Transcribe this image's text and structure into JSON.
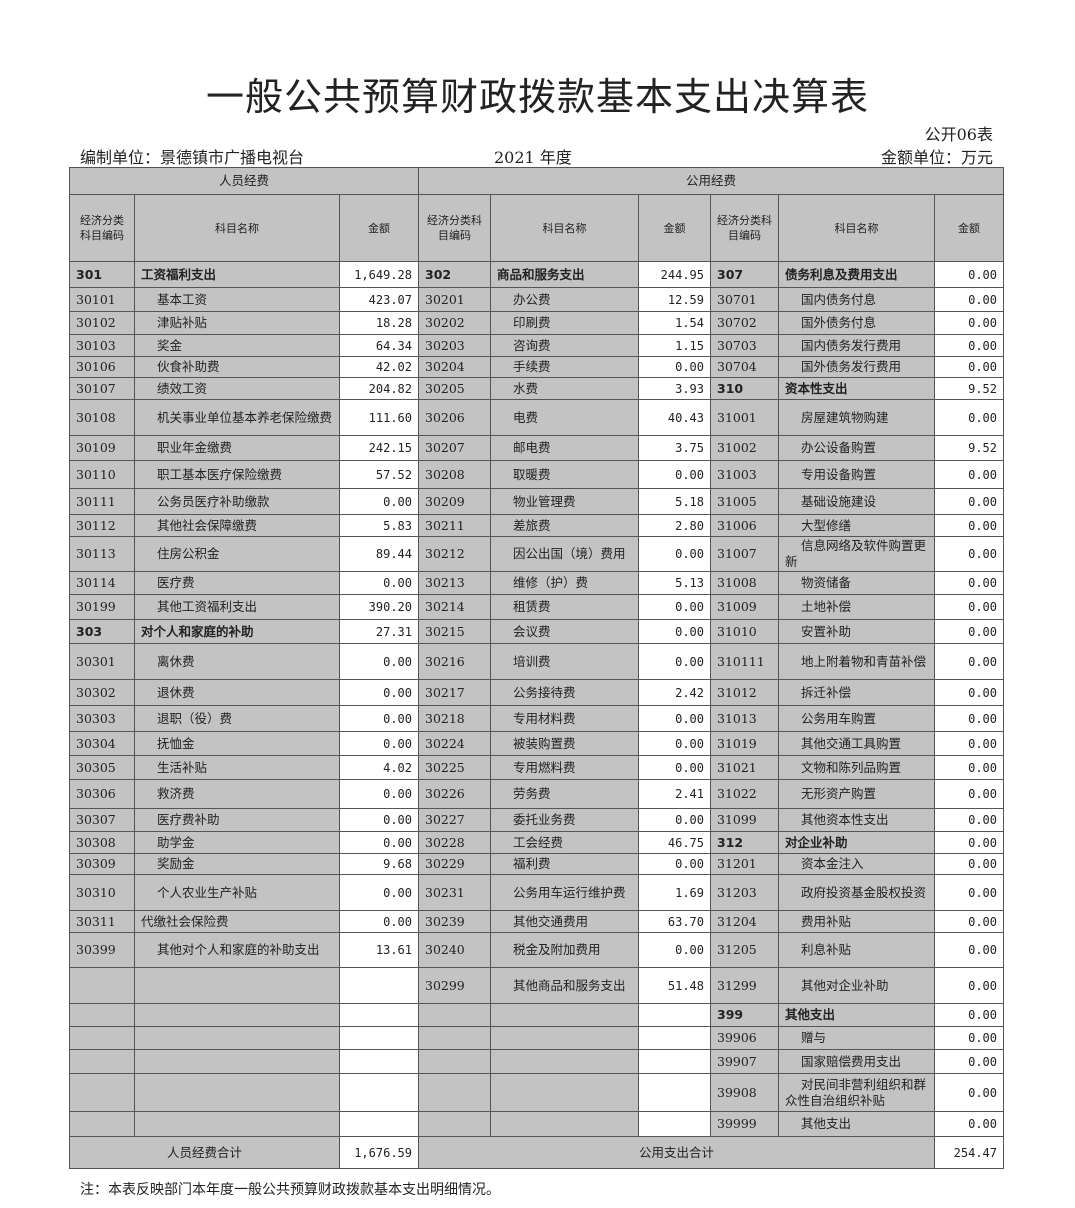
{
  "title": "一般公共预算财政拨款基本支出决算表",
  "table_no": "公开06表",
  "org": "编制单位：景德镇市广播电视台",
  "year": "2021 年度",
  "unit": "金额单位：万元",
  "headers": {
    "personnel": "人员经费",
    "public": "公用经费",
    "code1": "经济分类科目编码",
    "code2": "经济分类科目编码",
    "name": "科目名称",
    "amount": "金额"
  },
  "rows": [
    [
      [
        "301",
        "工资福利支出",
        "1,649.28",
        1
      ],
      [
        "302",
        "商品和服务支出",
        "244.95",
        1
      ],
      [
        "307",
        "债务利息及费用支出",
        "0.00",
        1
      ]
    ],
    [
      [
        "30101",
        "基本工资",
        "423.07"
      ],
      [
        "30201",
        "办公费",
        "12.59"
      ],
      [
        "30701",
        "国内债务付息",
        "0.00"
      ]
    ],
    [
      [
        "30102",
        "津贴补贴",
        "18.28"
      ],
      [
        "30202",
        "印刷费",
        "1.54"
      ],
      [
        "30702",
        "国外债务付息",
        "0.00"
      ]
    ],
    [
      [
        "30103",
        "奖金",
        "64.34"
      ],
      [
        "30203",
        "咨询费",
        "1.15"
      ],
      [
        "30703",
        "国内债务发行费用",
        "0.00"
      ]
    ],
    [
      [
        "30106",
        "伙食补助费",
        "42.02"
      ],
      [
        "30204",
        "手续费",
        "0.00"
      ],
      [
        "30704",
        "国外债务发行费用",
        "0.00"
      ]
    ],
    [
      [
        "30107",
        "绩效工资",
        "204.82"
      ],
      [
        "30205",
        "水费",
        "3.93"
      ],
      [
        "310",
        "资本性支出",
        "9.52",
        1
      ]
    ],
    [
      [
        "30108",
        "机关事业单位基本养老保险缴费",
        "111.60"
      ],
      [
        "30206",
        "电费",
        "40.43"
      ],
      [
        "31001",
        "房屋建筑物购建",
        "0.00"
      ]
    ],
    [
      [
        "30109",
        "职业年金缴费",
        "242.15"
      ],
      [
        "30207",
        "邮电费",
        "3.75"
      ],
      [
        "31002",
        "办公设备购置",
        "9.52"
      ]
    ],
    [
      [
        "30110",
        "职工基本医疗保险缴费",
        "57.52"
      ],
      [
        "30208",
        "取暖费",
        "0.00"
      ],
      [
        "31003",
        "专用设备购置",
        "0.00"
      ]
    ],
    [
      [
        "30111",
        "公务员医疗补助缴款",
        "0.00"
      ],
      [
        "30209",
        "物业管理费",
        "5.18"
      ],
      [
        "31005",
        "基础设施建设",
        "0.00"
      ]
    ],
    [
      [
        "30112",
        "其他社会保障缴费",
        "5.83"
      ],
      [
        "30211",
        "差旅费",
        "2.80"
      ],
      [
        "31006",
        "大型修缮",
        "0.00"
      ]
    ],
    [
      [
        "30113",
        "住房公积金",
        "89.44"
      ],
      [
        "30212",
        "因公出国（境）费用",
        "0.00"
      ],
      [
        "31007",
        "信息网络及软件购置更新",
        "0.00"
      ]
    ],
    [
      [
        "30114",
        "医疗费",
        "0.00"
      ],
      [
        "30213",
        "维修（护）费",
        "5.13"
      ],
      [
        "31008",
        "物资储备",
        "0.00"
      ]
    ],
    [
      [
        "30199",
        "其他工资福利支出",
        "390.20"
      ],
      [
        "30214",
        "租赁费",
        "0.00"
      ],
      [
        "31009",
        "土地补偿",
        "0.00"
      ]
    ],
    [
      [
        "303",
        "对个人和家庭的补助",
        "27.31",
        1
      ],
      [
        "30215",
        "会议费",
        "0.00"
      ],
      [
        "31010",
        "安置补助",
        "0.00"
      ]
    ],
    [
      [
        "30301",
        "离休费",
        "0.00"
      ],
      [
        "30216",
        "培训费",
        "0.00"
      ],
      [
        "310111",
        "地上附着物和青苗补偿",
        "0.00"
      ]
    ],
    [
      [
        "30302",
        "退休费",
        "0.00"
      ],
      [
        "30217",
        "公务接待费",
        "2.42"
      ],
      [
        "31012",
        "拆迁补偿",
        "0.00"
      ]
    ],
    [
      [
        "30303",
        "退职（役）费",
        "0.00"
      ],
      [
        "30218",
        "专用材料费",
        "0.00"
      ],
      [
        "31013",
        "公务用车购置",
        "0.00"
      ]
    ],
    [
      [
        "30304",
        "抚恤金",
        "0.00"
      ],
      [
        "30224",
        "被装购置费",
        "0.00"
      ],
      [
        "31019",
        "其他交通工具购置",
        "0.00"
      ]
    ],
    [
      [
        "30305",
        "生活补贴",
        "4.02"
      ],
      [
        "30225",
        "专用燃料费",
        "0.00"
      ],
      [
        "31021",
        "文物和陈列品购置",
        "0.00"
      ]
    ],
    [
      [
        "30306",
        "救济费",
        "0.00"
      ],
      [
        "30226",
        "劳务费",
        "2.41"
      ],
      [
        "31022",
        "无形资产购置",
        "0.00"
      ]
    ],
    [
      [
        "30307",
        "医疗费补助",
        "0.00"
      ],
      [
        "30227",
        "委托业务费",
        "0.00"
      ],
      [
        "31099",
        "其他资本性支出",
        "0.00"
      ]
    ],
    [
      [
        "30308",
        "助学金",
        "0.00"
      ],
      [
        "30228",
        "工会经费",
        "46.75"
      ],
      [
        "312",
        "对企业补助",
        "0.00",
        1
      ]
    ],
    [
      [
        "30309",
        "奖励金",
        "9.68"
      ],
      [
        "30229",
        "福利费",
        "0.00"
      ],
      [
        "31201",
        "资本金注入",
        "0.00"
      ]
    ],
    [
      [
        "30310",
        "个人农业生产补贴",
        "0.00"
      ],
      [
        "30231",
        "公务用车运行维护费",
        "1.69"
      ],
      [
        "31203",
        "政府投资基金股权投资",
        "0.00"
      ]
    ],
    [
      [
        "30311",
        "代缴社会保险费",
        "0.00",
        2
      ],
      [
        "30239",
        "其他交通费用",
        "63.70"
      ],
      [
        "31204",
        "费用补贴",
        "0.00"
      ]
    ],
    [
      [
        "30399",
        "其他对个人和家庭的补助支出",
        "13.61"
      ],
      [
        "30240",
        "税金及附加费用",
        "0.00"
      ],
      [
        "31205",
        "利息补贴",
        "0.00"
      ]
    ],
    [
      [
        "",
        "",
        ""
      ],
      [
        "30299",
        "其他商品和服务支出",
        "51.48"
      ],
      [
        "31299",
        "其他对企业补助",
        "0.00"
      ]
    ],
    [
      [
        "",
        "",
        ""
      ],
      [
        "",
        "",
        ""
      ],
      [
        "399",
        "其他支出",
        "0.00",
        1
      ]
    ],
    [
      [
        "",
        "",
        ""
      ],
      [
        "",
        "",
        ""
      ],
      [
        "39906",
        "赠与",
        "0.00"
      ]
    ],
    [
      [
        "",
        "",
        ""
      ],
      [
        "",
        "",
        ""
      ],
      [
        "39907",
        "国家赔偿费用支出",
        "0.00"
      ]
    ],
    [
      [
        "",
        "",
        ""
      ],
      [
        "",
        "",
        ""
      ],
      [
        "39908",
        "对民间非营利组织和群众性自治组织补贴",
        "0.00"
      ]
    ],
    [
      [
        "",
        "",
        ""
      ],
      [
        "",
        "",
        ""
      ],
      [
        "39999",
        "其他支出",
        "0.00"
      ]
    ]
  ],
  "totals": {
    "personnel_label": "人员经费合计",
    "personnel_value": "1,676.59",
    "public_label": "公用支出合计",
    "public_value": "254.47"
  },
  "note": "注：本表反映部门本年度一般公共预算财政拨款基本支出明细情况。"
}
